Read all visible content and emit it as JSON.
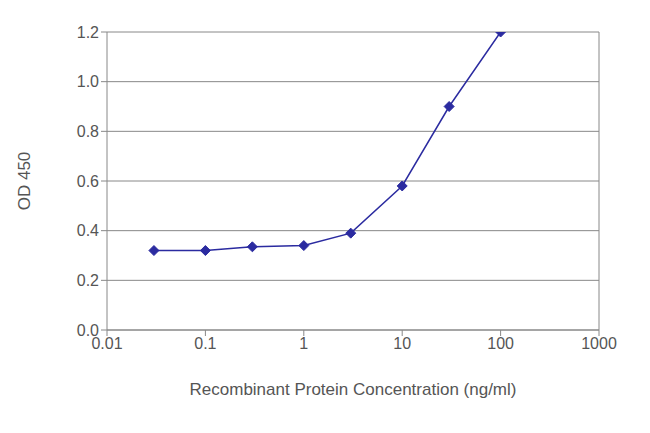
{
  "chart_data": {
    "type": "line",
    "x_label": "Recombinant Protein Concentration (ng/ml)",
    "y_label": "OD 450",
    "x": [
      0.03,
      0.1,
      0.3,
      1,
      3,
      10,
      30,
      100
    ],
    "values": [
      0.32,
      0.32,
      0.335,
      0.34,
      0.39,
      0.58,
      0.9,
      1.2
    ],
    "color": "#2b2ba0",
    "marker": "diamond",
    "log": "x",
    "xlim": [
      0.01,
      1000
    ],
    "xticks": [
      0.01,
      0.1,
      1,
      10,
      100,
      1000
    ],
    "ylim": [
      0,
      1.2
    ],
    "yticks": [
      {
        "value": 0,
        "label": "0.0"
      },
      0.2,
      0.4,
      0.6,
      0.8,
      {
        "value": 1,
        "label": "1.0"
      },
      1.2
    ],
    "grid": true
  }
}
